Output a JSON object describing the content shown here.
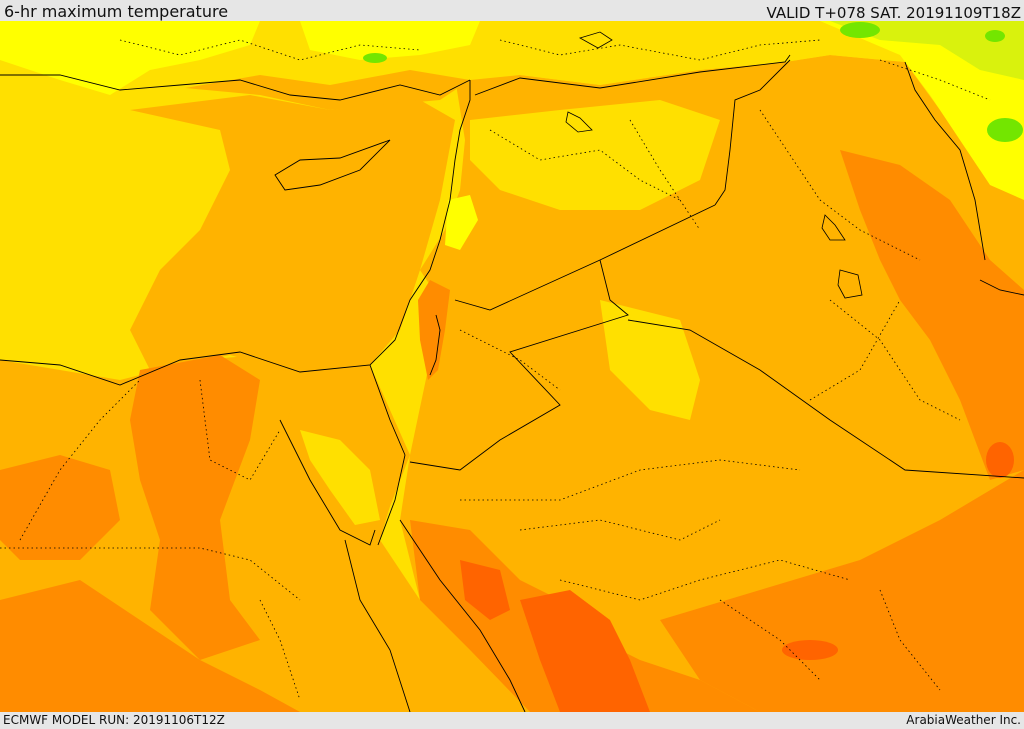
{
  "header": {
    "title": "6-hr maximum temperature",
    "valid": "VALID T+078 SAT. 20191109T18Z"
  },
  "footer": {
    "model_run": "ECMWF MODEL RUN: 20191106T12Z",
    "credit": "ArabiaWeather Inc."
  },
  "map": {
    "region": "Eastern Mediterranean / Levant / Middle East",
    "field": "temperature shading",
    "colors": {
      "green": "#73e600",
      "lime": "#d9f20d",
      "yellow": "#ffff00",
      "gold": "#ffe000",
      "light_orange": "#ffb300",
      "orange": "#ff8c00",
      "deep_orange": "#ff6400",
      "border": "#000000"
    },
    "labels": []
  }
}
